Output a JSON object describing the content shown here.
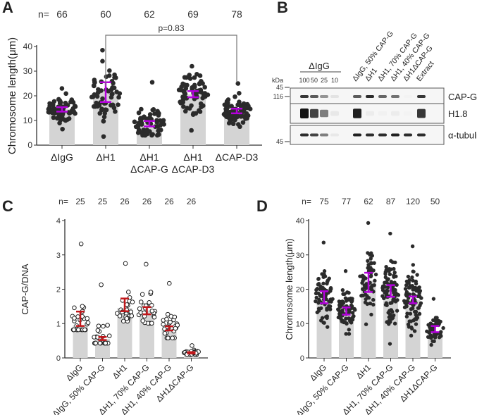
{
  "panels": {
    "A": "A",
    "B": "B",
    "C": "C",
    "D": "D"
  },
  "chart_data": [
    {
      "id": "A",
      "type": "bar",
      "title": "",
      "xlabel": "",
      "ylabel": "Chromosome length(μm)",
      "ylim": [
        0,
        40
      ],
      "yticks": [
        0,
        10,
        20,
        30,
        40
      ],
      "n_prefix": "n=",
      "categories": [
        "ΔIgG",
        "ΔH1\nΔCAP-G",
        "ΔH1\nΔCAP-D3",
        "ΔCAP-D3"
      ],
      "categories_full": [
        "ΔIgG",
        "ΔH1",
        "ΔH1\nΔCAP-G",
        "ΔH1\nΔCAP-D3",
        "ΔCAP-D3"
      ],
      "n": [
        66,
        60,
        62,
        69,
        78
      ],
      "values": [
        14.7,
        21.5,
        8.7,
        20.6,
        13.8
      ],
      "ci_low": [
        13.6,
        17.5,
        7.6,
        19.4,
        12.9
      ],
      "ci_high": [
        15.4,
        25.5,
        9.8,
        21.9,
        14.8
      ],
      "min": [
        6.5,
        3.5,
        4.0,
        6.0,
        7.5
      ],
      "max": [
        23.0,
        38.5,
        25.5,
        32.0,
        25.0
      ],
      "annotation": {
        "text": "p=0.83",
        "between": [
          "ΔH1",
          "ΔCAP-D3"
        ]
      },
      "bar_color": "#d4d4d4",
      "dot_color": "#2b2b2b",
      "error_color": "#b400dc",
      "grid": false
    },
    {
      "id": "C",
      "type": "bar",
      "ylabel": "CAP-G/DNA",
      "ylim": [
        0,
        4
      ],
      "yticks": [
        0,
        1,
        2,
        3,
        4
      ],
      "n_prefix": "n=",
      "categories": [
        "ΔIgG",
        "ΔIgG, 50% CAP-G",
        "ΔH1",
        "ΔH1, 70% CAP-G",
        "ΔH1, 40% CAP-G",
        "ΔH1ΔCAP-G"
      ],
      "n": [
        25,
        25,
        26,
        26,
        26,
        26
      ],
      "values": [
        0.95,
        0.55,
        1.45,
        1.38,
        0.85,
        0.15
      ],
      "ci_low": [
        0.93,
        0.52,
        1.36,
        1.27,
        0.8,
        0.13
      ],
      "ci_high": [
        1.35,
        0.61,
        1.73,
        1.48,
        0.92,
        0.17
      ],
      "min": [
        0.82,
        0.43,
        1.07,
        1.01,
        0.58,
        0.1
      ],
      "max": [
        3.32,
        2.13,
        2.75,
        2.73,
        2.17,
        0.36
      ],
      "bar_color": "#d4d4d4",
      "dot_color": "#ffffff",
      "error_color": "#c0171b",
      "grid": false
    },
    {
      "id": "D",
      "type": "bar",
      "ylabel": "Chromosome length(μm)",
      "ylim": [
        0,
        40
      ],
      "yticks": [
        0,
        10,
        20,
        30,
        40
      ],
      "n_prefix": "n=",
      "categories": [
        "ΔIgG",
        "ΔIgG, 50% CAP-G",
        "ΔH1",
        "ΔH1, 70% CAP-G",
        "ΔH1, 40% CAP-G",
        "ΔH1ΔCAP-G"
      ],
      "n": [
        75,
        77,
        62,
        87,
        120,
        50
      ],
      "values": [
        17.4,
        13.8,
        22.5,
        19.4,
        16.9,
        7.7
      ],
      "ci_low": [
        15.9,
        12.6,
        19.2,
        17.8,
        15.9,
        7.5
      ],
      "ci_high": [
        19.4,
        14.7,
        24.8,
        21.2,
        17.9,
        9.3
      ],
      "min": [
        9.0,
        7.0,
        9.8,
        4.1,
        6.5,
        3.8
      ],
      "max": [
        33.6,
        25.3,
        39.3,
        36.2,
        32.5,
        17.2
      ],
      "bar_color": "#d4d4d4",
      "dot_color": "#2b2b2b",
      "error_color": "#b400dc",
      "grid": false
    }
  ],
  "blot": {
    "kda_label": "kDa",
    "group_label": "ΔIgG",
    "dilutions": [
      "100",
      "50",
      "25",
      "10"
    ],
    "lane_labels": [
      "ΔIgG, 50% CAP-G",
      "ΔH1",
      "ΔH1, 70% CAP-G",
      "ΔH1, 40% CAP-G",
      "ΔH1ΔCAP-G",
      "Extract"
    ],
    "markers": [
      {
        "label": "116",
        "row": 0
      },
      {
        "label": "45",
        "row": 1
      },
      {
        "label": "45",
        "row": 2
      }
    ],
    "rows": [
      {
        "label": "CAP-G",
        "intensities": [
          0.85,
          0.7,
          0.45,
          0.12,
          0.7,
          0.9,
          0.65,
          0.6,
          0.05,
          0.85
        ]
      },
      {
        "label": "H1.8",
        "intensities": [
          1.0,
          0.8,
          0.55,
          0.1,
          0.95,
          0.08,
          0.06,
          0.08,
          0.05,
          0.85
        ]
      },
      {
        "label": "α-tubulin",
        "intensities": [
          0.9,
          0.8,
          0.55,
          0.1,
          0.95,
          0.9,
          0.9,
          0.95,
          0.9,
          0.9
        ]
      }
    ]
  }
}
